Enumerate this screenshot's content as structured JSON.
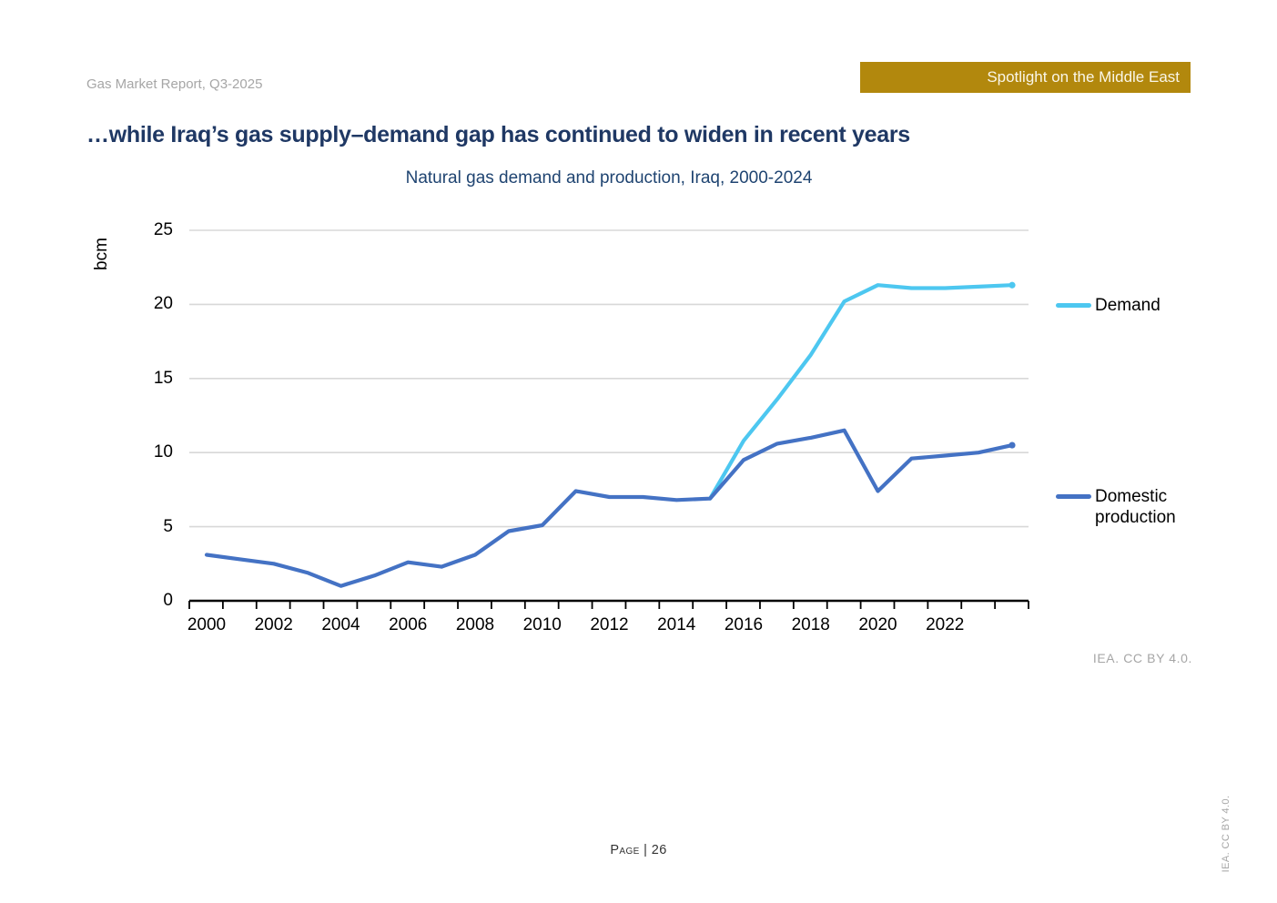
{
  "header": {
    "report_label": "Gas Market Report, Q3-2025",
    "banner_label": "Spotlight on the Middle East",
    "banner_color": "#b2880d"
  },
  "title": {
    "text": "…while Iraq’s gas supply–demand gap has continued to widen in recent years",
    "color": "#1f3864"
  },
  "chart": {
    "subtitle": "Natural gas demand and production, Iraq, 2000-2024",
    "subtitle_color": "#1f4471",
    "y_axis_label": "bcm",
    "y_ticks": [
      0,
      5,
      10,
      15,
      20,
      25
    ],
    "x_tick_labels": [
      "2000",
      "2002",
      "2004",
      "2006",
      "2008",
      "2010",
      "2012",
      "2014",
      "2016",
      "2018",
      "2020",
      "2022"
    ],
    "grid_color": "#d8d8d8",
    "axis_color": "#000000",
    "legend": [
      {
        "label": "Demand",
        "color": "#4dc7f0"
      },
      {
        "label": "Domestic production",
        "color": "#4472c4"
      }
    ]
  },
  "chart_data": {
    "type": "line",
    "title": "Natural gas demand and production, Iraq, 2000-2024",
    "xlabel": "",
    "ylabel": "bcm",
    "ylim": [
      0,
      25
    ],
    "grid": "horizontal",
    "legend_position": "right",
    "x": [
      2000,
      2001,
      2002,
      2003,
      2004,
      2005,
      2006,
      2007,
      2008,
      2009,
      2010,
      2011,
      2012,
      2013,
      2014,
      2015,
      2016,
      2017,
      2018,
      2019,
      2020,
      2021,
      2022,
      2023,
      2024
    ],
    "series": [
      {
        "name": "Demand",
        "color": "#4dc7f0",
        "values": [
          null,
          null,
          null,
          null,
          null,
          null,
          null,
          null,
          null,
          null,
          null,
          null,
          null,
          null,
          null,
          6.9,
          10.8,
          13.6,
          16.6,
          20.2,
          21.3,
          21.1,
          21.1,
          21.2,
          21.3
        ]
      },
      {
        "name": "Domestic production",
        "color": "#4472c4",
        "values": [
          3.1,
          2.8,
          2.5,
          1.9,
          1.0,
          1.7,
          2.6,
          2.3,
          3.1,
          4.7,
          5.1,
          7.4,
          7.0,
          7.0,
          6.8,
          6.9,
          9.5,
          10.6,
          11.0,
          11.5,
          7.4,
          9.6,
          9.8,
          10.0,
          10.5
        ]
      }
    ]
  },
  "footer": {
    "credit": "IEA. CC BY 4.0.",
    "page_label": "Page | 26",
    "side_credit": "IEA. CC BY 4.0."
  }
}
